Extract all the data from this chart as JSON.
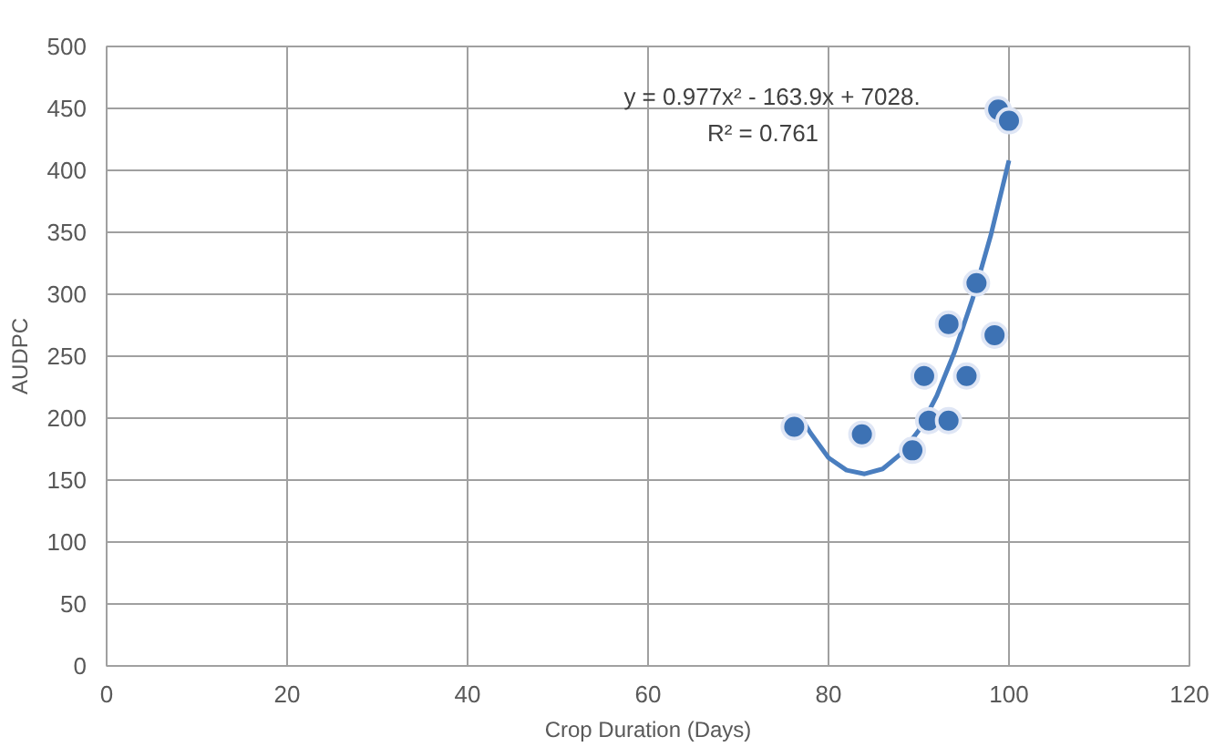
{
  "chart_data": {
    "type": "scatter",
    "xlabel": "Crop Duration (Days)",
    "ylabel": "AUDPC",
    "xlim": [
      0,
      120
    ],
    "xticks": [
      0,
      20,
      40,
      60,
      80,
      100,
      120
    ],
    "ylim": [
      0,
      500
    ],
    "yticks": [
      0,
      50,
      100,
      150,
      200,
      250,
      300,
      350,
      400,
      450,
      500
    ],
    "grid": true,
    "marker": "circle",
    "annotations": [
      "y = 0.977x² - 163.9x + 7028.",
      "R² = 0.761"
    ],
    "series": [
      {
        "color": "#3d72b4",
        "x": [
          76.2,
          83.7,
          89.3,
          91.1,
          93.3,
          90.6,
          95.3,
          93.3,
          96.4,
          98.4,
          98.8,
          100
        ],
        "values": [
          193,
          187,
          174,
          198,
          198,
          234,
          234,
          276,
          309,
          267,
          449,
          440
        ]
      },
      {
        "type": "line",
        "color": "#4a7ebf",
        "marker": "none",
        "line_style": "solid",
        "x": [
          77,
          78,
          80,
          82,
          84,
          86,
          88,
          90,
          92,
          94,
          96,
          98,
          100
        ],
        "values": [
          200,
          188,
          168,
          158,
          155,
          159,
          171,
          190,
          218,
          254,
          297,
          348,
          408
        ]
      }
    ]
  }
}
